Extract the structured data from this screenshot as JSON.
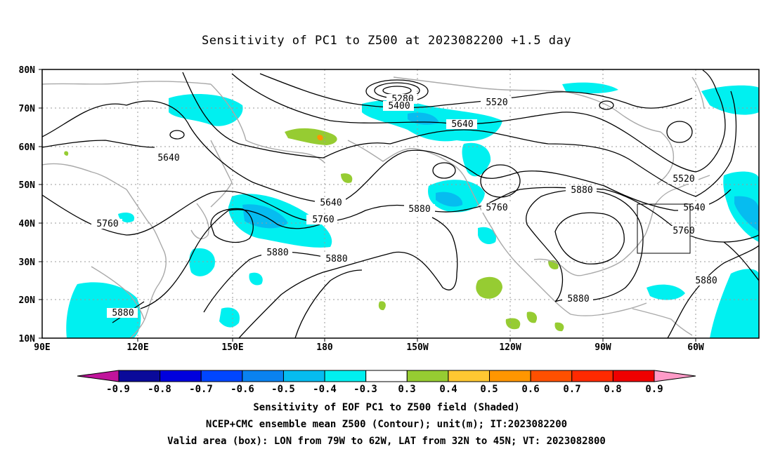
{
  "title": "Sensitivity of PC1 to Z500 at 2023082200 +1.5 day",
  "lat_labels": [
    "80N",
    "70N",
    "60N",
    "50N",
    "40N",
    "30N",
    "20N",
    "10N"
  ],
  "lon_labels": [
    "90E",
    "120E",
    "150E",
    "180",
    "150W",
    "120W",
    "90W",
    "60W"
  ],
  "contour_labels": [
    "5280",
    "5400",
    "5520",
    "5640",
    "5640",
    "5640",
    "5760",
    "5760",
    "5880",
    "5760",
    "5880",
    "5880",
    "5520",
    "5640",
    "5760",
    "5880",
    "5880",
    "5880"
  ],
  "colorbar": {
    "labels": [
      "-0.9",
      "-0.8",
      "-0.7",
      "-0.6",
      "-0.5",
      "-0.4",
      "-0.3",
      "0.3",
      "0.4",
      "0.5",
      "0.6",
      "0.7",
      "0.8",
      "0.9"
    ],
    "colors": [
      "#0a0a9a",
      "#0000dd",
      "#0046ff",
      "#0a82f0",
      "#06bcf0",
      "#00f0f0",
      "#ffffff",
      "#96cc32",
      "#ffc832",
      "#ff9600",
      "#ff5000",
      "#ff2a00",
      "#ee0000"
    ],
    "low_arrow_color": "#c0149b",
    "high_arrow_color": "#ff9bc8"
  },
  "captions": {
    "line1": "Sensitivity of EOF PC1 to Z500 field (Shaded)",
    "line2": "NCEP+CMC ensemble mean Z500 (Contour); unit(m); IT:2023082200",
    "line3": "Valid area (box): LON from 79W to 62W, LAT from 32N to 45N; VT: 2023082800"
  },
  "valid_box": {
    "lon_west": "79W",
    "lon_east": "62W",
    "lat_south": "32N",
    "lat_north": "45N"
  }
}
